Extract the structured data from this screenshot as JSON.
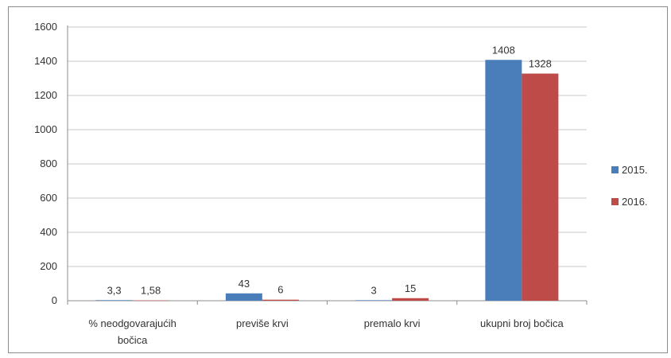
{
  "chart_data": {
    "type": "bar",
    "categories": [
      "% neodgovarajućih bočica",
      "previše krvi",
      "premalo krvi",
      "ukupni broj bočica"
    ],
    "category_lines": [
      [
        "% neodgovarajućih",
        "bočica"
      ],
      [
        "previše krvi"
      ],
      [
        "premalo krvi"
      ],
      [
        "ukupni broj bočica"
      ]
    ],
    "series": [
      {
        "name": "2015.",
        "values": [
          3.3,
          43,
          3,
          1408
        ],
        "labels": [
          "3,3",
          "43",
          "3",
          "1408"
        ],
        "color": "#4a7ebb"
      },
      {
        "name": "2016.",
        "values": [
          1.58,
          6,
          15,
          1328
        ],
        "labels": [
          "1,58",
          "6",
          "15",
          "1328"
        ],
        "color": "#be4b48"
      }
    ],
    "ylim": [
      0,
      1600
    ],
    "yticks": [
      0,
      200,
      400,
      600,
      800,
      1000,
      1200,
      1400,
      1600
    ],
    "grid": true,
    "legend": "right",
    "title": "",
    "xlabel": "",
    "ylabel": ""
  }
}
